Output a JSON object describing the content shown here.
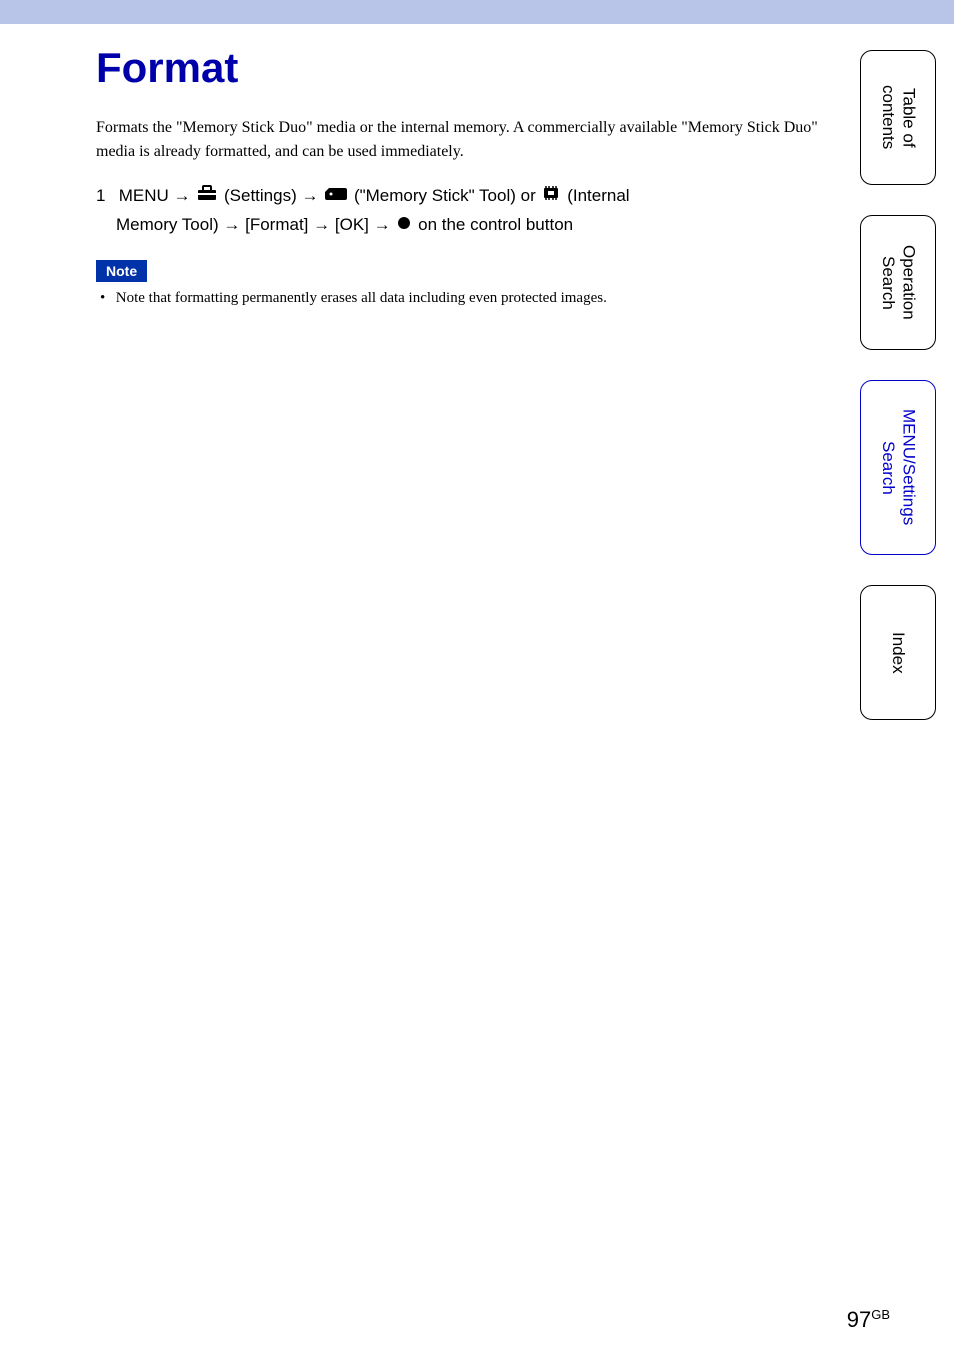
{
  "page": {
    "title": "Format",
    "intro": "Formats the \"Memory Stick Duo\" media or the internal memory. A commercially available \"Memory Stick Duo\" media is already formatted, and can be used immediately.",
    "step_number": "1",
    "step_menu": "MENU",
    "step_settings": "(Settings)",
    "step_mstick": "(\"Memory Stick\" Tool) or",
    "step_internal": "(Internal",
    "step_line2_start": "Memory Tool)",
    "step_format": "[Format]",
    "step_ok": "[OK]",
    "step_end": "on the control button",
    "note_label": "Note",
    "note_bullet": "•",
    "note_text": "Note that formatting permanently erases all data including even protected images.",
    "arrow": "→"
  },
  "tabs": {
    "toc": "Table of\ncontents",
    "operation": "Operation\nSearch",
    "menu": "MENU/Settings\nSearch",
    "index": "Index"
  },
  "footer": {
    "page_num": "97",
    "suffix": "GB"
  },
  "colors": {
    "top_bar": "#b8c5e8",
    "title": "#0000aa",
    "note_bg": "#0033aa",
    "tab_border": "#000000",
    "tab_active": "#0000cc"
  }
}
